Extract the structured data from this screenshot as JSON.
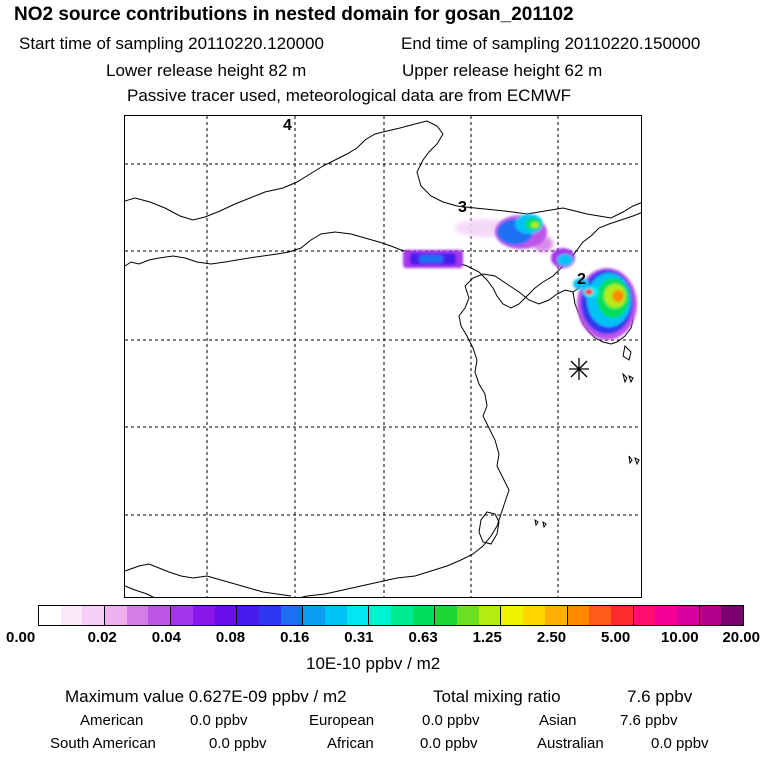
{
  "header": {
    "title": "NO2 source contributions in nested domain for gosan_201102",
    "start_sampling": "Start time of sampling 20110220.120000",
    "end_sampling": "End time of sampling 20110220.150000",
    "lower_release": "Lower release height   82 m",
    "upper_release": "Upper release height   62 m",
    "tracer_note": "Passive tracer used, meteorological data are from ECMWF"
  },
  "map": {
    "source_labels": [
      "2",
      "3",
      "4"
    ],
    "receptor": "gosan"
  },
  "colorbar": {
    "colors": [
      "#ffffff",
      "#fbe8fb",
      "#f6cff6",
      "#eeb0ef",
      "#d27ee6",
      "#bd55e9",
      "#a435ec",
      "#8a16ea",
      "#6a0fec",
      "#4a1bed",
      "#2d38f0",
      "#1c6ff3",
      "#0b9ef3",
      "#00c3f5",
      "#00e7f2",
      "#00f3d0",
      "#00eb92",
      "#00df5c",
      "#1ed734",
      "#6de021",
      "#b4ec12",
      "#eef200",
      "#ffd700",
      "#ffb000",
      "#ff8a00",
      "#ff5a1a",
      "#ff2a2a",
      "#ff1070",
      "#f60098",
      "#d8009c",
      "#b0008c",
      "#7a006e"
    ],
    "tick_labels": [
      "0.00",
      "0.02",
      "0.04",
      "0.08",
      "0.16",
      "0.31",
      "0.63",
      "1.25",
      "2.50",
      "5.00",
      "10.00",
      "20.00"
    ],
    "unit": "10E-10 ppbv / m2"
  },
  "summary": {
    "max_value": "Maximum value  0.627E-09 ppbv / m2",
    "total_mixing": "Total mixing ratio",
    "total_mixing_value": "7.6 ppbv",
    "regions": [
      {
        "name": "American",
        "value": "0.0 ppbv"
      },
      {
        "name": "European",
        "value": "0.0 ppbv"
      },
      {
        "name": "Asian",
        "value": "7.6 ppbv"
      },
      {
        "name": "South American",
        "value": "0.0 ppbv"
      },
      {
        "name": "African",
        "value": "0.0 ppbv"
      },
      {
        "name": "Australian",
        "value": "0.0 ppbv"
      }
    ]
  }
}
